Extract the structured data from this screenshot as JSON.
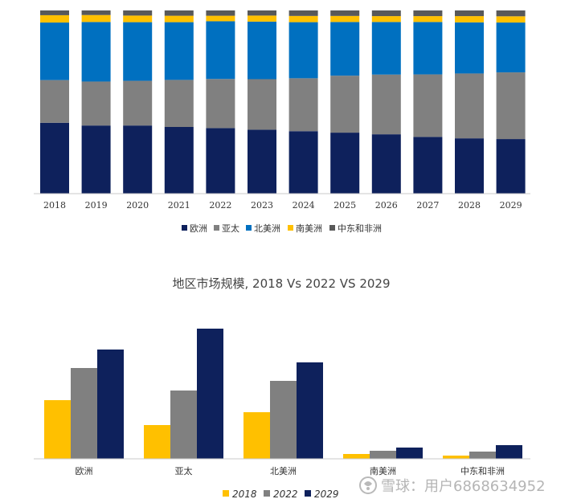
{
  "chart_data": [
    {
      "type": "bar",
      "stacked": true,
      "normalized": true,
      "title": "",
      "categories": [
        "2018",
        "2019",
        "2020",
        "2021",
        "2022",
        "2023",
        "2024",
        "2025",
        "2026",
        "2027",
        "2028",
        "2029"
      ],
      "series": [
        {
          "name": "欧洲",
          "color": "#0e215c",
          "values": [
            0.387,
            0.372,
            0.372,
            0.364,
            0.358,
            0.349,
            0.341,
            0.333,
            0.324,
            0.31,
            0.302,
            0.298
          ]
        },
        {
          "name": "亚太",
          "color": "#808080",
          "values": [
            0.233,
            0.24,
            0.244,
            0.257,
            0.268,
            0.276,
            0.289,
            0.311,
            0.326,
            0.341,
            0.354,
            0.364
          ]
        },
        {
          "name": "北美洲",
          "color": "#0070c0",
          "values": [
            0.314,
            0.325,
            0.32,
            0.315,
            0.315,
            0.314,
            0.306,
            0.293,
            0.287,
            0.286,
            0.279,
            0.272
          ]
        },
        {
          "name": "南美洲",
          "color": "#ffc000",
          "values": [
            0.04,
            0.038,
            0.036,
            0.035,
            0.03,
            0.033,
            0.034,
            0.033,
            0.032,
            0.032,
            0.034,
            0.034
          ]
        },
        {
          "name": "中东和非洲",
          "color": "#595959",
          "values": [
            0.026,
            0.025,
            0.028,
            0.029,
            0.029,
            0.028,
            0.03,
            0.03,
            0.031,
            0.031,
            0.031,
            0.032
          ]
        }
      ],
      "legend_position": "bottom"
    },
    {
      "type": "bar",
      "title": "地区市场规模, 2018 Vs 2022 VS 2029",
      "categories": [
        "欧洲",
        "亚太",
        "北美洲",
        "南美洲",
        "中东和非洲"
      ],
      "series": [
        {
          "name": "2018",
          "color": "#ffc000",
          "values": [
            73,
            42,
            58,
            6,
            4
          ]
        },
        {
          "name": "2022",
          "color": "#808080",
          "values": [
            113,
            85,
            97,
            10,
            9
          ]
        },
        {
          "name": "2029",
          "color": "#0e215c",
          "values": [
            136,
            162,
            120,
            14,
            17
          ]
        }
      ],
      "ylim": [
        0,
        170
      ],
      "legend_position": "bottom"
    }
  ],
  "watermark": "雪球：用户6868634952"
}
